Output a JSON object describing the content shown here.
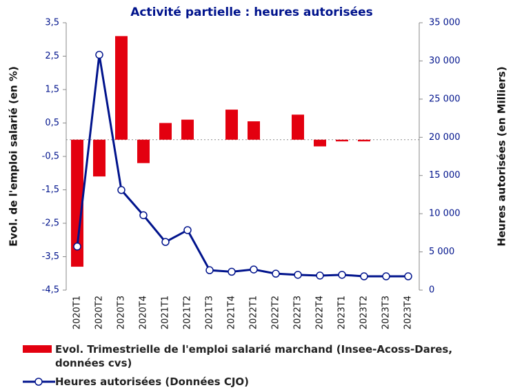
{
  "chart_data": {
    "type": "bar_line",
    "title": "Activité partielle : heures autorisées",
    "y_label": "Evol. de l'emploi salarié (en %)",
    "y2_label": "Heures autorisées (en Milliers)",
    "categories": [
      "2020T1",
      "2020T2",
      "2020T3",
      "2020T4",
      "2021T1",
      "2021T2",
      "2021T3",
      "2021T4",
      "2022T1",
      "2022T2",
      "2022T3",
      "2022T4",
      "2023T1",
      "2023T2",
      "2023T3",
      "2023T4"
    ],
    "series": [
      {
        "name": "Evol. Trimestrielle de l'emploi salarié marchand (Insee-Acoss-Dares, données cvs)",
        "type": "bar",
        "color": "#e3000f",
        "values": [
          -3.8,
          -1.1,
          3.1,
          -0.7,
          0.5,
          0.6,
          0,
          0.9,
          0.55,
          0,
          0.75,
          -0.2,
          -0.05,
          -0.05,
          0,
          0
        ]
      },
      {
        "name": "Heures autorisées (Données CJO)",
        "type": "line",
        "axis": "y2",
        "color": "#00138c",
        "values": [
          5700,
          30800,
          13100,
          9800,
          6300,
          7850,
          2600,
          2400,
          2700,
          2150,
          2000,
          1900,
          2000,
          1800,
          1800,
          1800
        ]
      }
    ],
    "ylim": [
      -4.5,
      3.5
    ],
    "yticks": [
      {
        "value": -4.5,
        "label": "-4,5"
      },
      {
        "value": -3.5,
        "label": "-3,5"
      },
      {
        "value": -2.5,
        "label": "-2,5"
      },
      {
        "value": -1.5,
        "label": "-1,5"
      },
      {
        "value": -0.5,
        "label": "-0,5"
      },
      {
        "value": 0.5,
        "label": "0,5"
      },
      {
        "value": 1.5,
        "label": "1,5"
      },
      {
        "value": 2.5,
        "label": "2,5"
      },
      {
        "value": 3.5,
        "label": "3,5"
      }
    ],
    "y2lim": [
      0,
      35000
    ],
    "y2ticks": [
      0,
      {
        "value": 5000,
        "label": "5 000"
      },
      {
        "value": 10000,
        "label": "10 000"
      },
      {
        "value": 15000,
        "label": "15 000"
      },
      {
        "value": 20000,
        "label": "20 000"
      },
      {
        "value": 25000,
        "label": "25 000"
      },
      {
        "value": 30000,
        "label": "30 000"
      },
      {
        "value": 35000,
        "label": "35 000"
      }
    ],
    "grid": false
  }
}
